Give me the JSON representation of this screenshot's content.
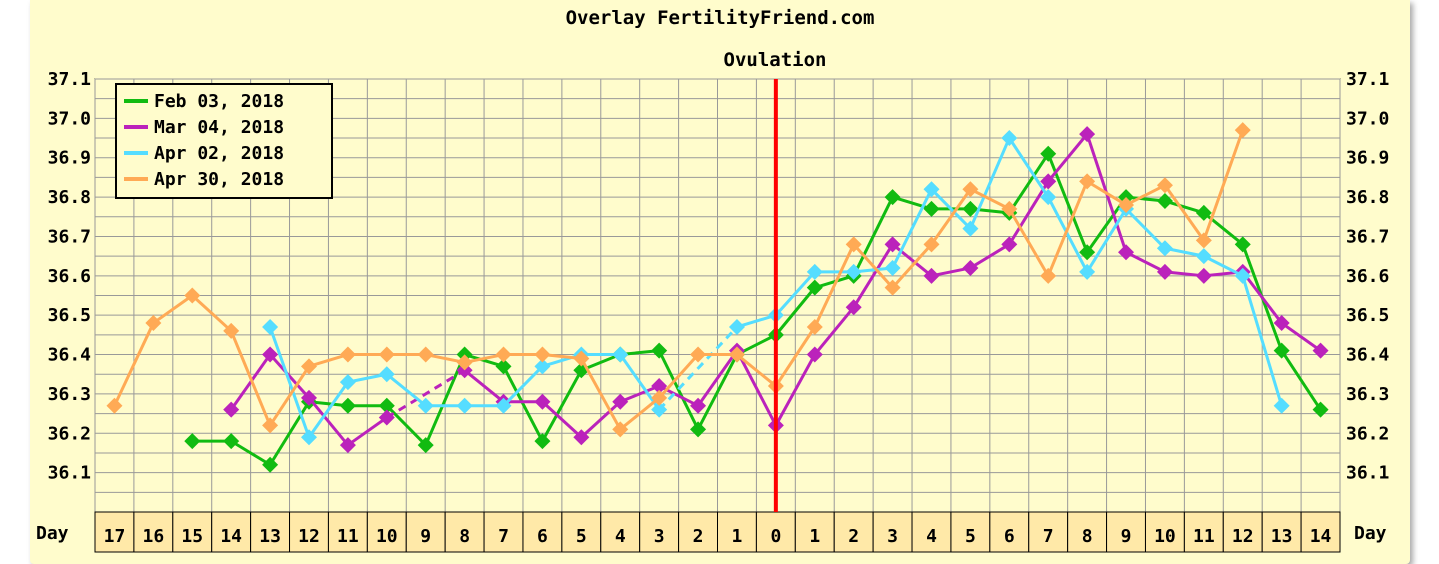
{
  "chart_data": {
    "type": "line",
    "title": "Overlay FertilityFriend.com",
    "annotation": "Ovulation",
    "ovulation_day": "0",
    "x_axis_label": "Day",
    "x": [
      "17",
      "16",
      "15",
      "14",
      "13",
      "12",
      "11",
      "10",
      "9",
      "8",
      "7",
      "6",
      "5",
      "4",
      "3",
      "2",
      "1",
      "0",
      "1",
      "2",
      "3",
      "4",
      "5",
      "6",
      "7",
      "8",
      "9",
      "10",
      "11",
      "12",
      "13",
      "14"
    ],
    "y_ticks": [
      "36.1",
      "36.2",
      "36.3",
      "36.4",
      "36.5",
      "36.6",
      "36.7",
      "36.8",
      "36.9",
      "37.0",
      "37.1"
    ],
    "ylim": [
      36.0,
      37.1
    ],
    "grid": true,
    "legend_position": "top-left",
    "series": [
      {
        "name": "Feb 03, 2018",
        "color": "#11bb11",
        "values": [
          null,
          null,
          36.18,
          36.18,
          36.12,
          36.28,
          36.27,
          36.27,
          36.17,
          36.4,
          36.37,
          36.18,
          36.36,
          36.4,
          36.41,
          36.21,
          36.4,
          36.45,
          36.57,
          36.6,
          36.8,
          36.77,
          36.77,
          36.76,
          36.91,
          36.66,
          36.8,
          36.79,
          36.76,
          36.68,
          36.41,
          36.26
        ]
      },
      {
        "name": "Mar 04, 2018",
        "color": "#bb22bb",
        "values": [
          null,
          null,
          null,
          36.26,
          36.4,
          36.29,
          36.17,
          36.24,
          null,
          36.36,
          36.28,
          36.28,
          36.19,
          36.28,
          36.32,
          36.27,
          36.41,
          36.22,
          36.4,
          36.52,
          36.68,
          36.6,
          36.62,
          36.68,
          36.84,
          36.96,
          36.66,
          36.61,
          36.6,
          36.61,
          36.48,
          36.41
        ]
      },
      {
        "name": "Apr 02, 2018",
        "color": "#55ddff",
        "values": [
          null,
          null,
          null,
          null,
          36.47,
          36.19,
          36.33,
          36.35,
          36.27,
          36.27,
          36.27,
          36.37,
          36.4,
          36.4,
          36.26,
          null,
          36.47,
          36.5,
          36.61,
          36.61,
          36.62,
          36.82,
          36.72,
          36.95,
          36.8,
          36.61,
          36.77,
          36.67,
          36.65,
          36.6,
          36.27,
          null
        ]
      },
      {
        "name": "Apr 30, 2018",
        "color": "#ffaa55",
        "values": [
          36.27,
          36.48,
          36.55,
          36.46,
          36.22,
          36.37,
          36.4,
          36.4,
          36.4,
          36.38,
          36.4,
          36.4,
          36.39,
          36.21,
          36.29,
          36.4,
          36.4,
          36.32,
          36.47,
          36.68,
          36.57,
          36.68,
          36.82,
          36.77,
          36.6,
          36.84,
          36.78,
          36.83,
          36.69,
          36.97,
          null,
          null
        ]
      }
    ]
  }
}
